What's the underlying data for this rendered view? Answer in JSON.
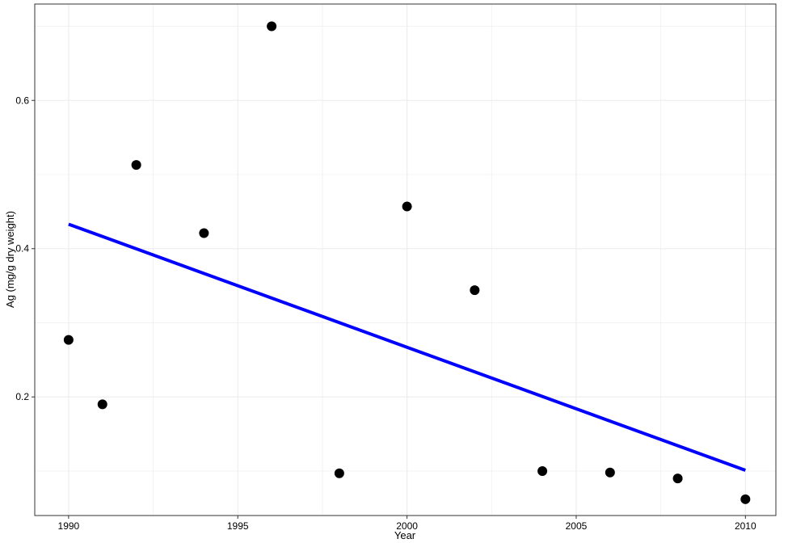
{
  "chart_data": {
    "type": "scatter",
    "xlabel": "Year",
    "ylabel": "Ag (mg/g dry weight)",
    "xlim": [
      1989.0,
      2010.9
    ],
    "ylim": [
      0.04,
      0.73
    ],
    "x_ticks": [
      1990,
      1995,
      2000,
      2005,
      2010
    ],
    "y_ticks": [
      0.2,
      0.4,
      0.6
    ],
    "x_tick_labels": [
      "1990",
      "1995",
      "2000",
      "2005",
      "2010"
    ],
    "y_tick_labels": [
      "0.2",
      "0.4",
      "0.6"
    ],
    "grid": true,
    "series": [
      {
        "type": "scatter",
        "x": [
          1990,
          1991,
          1992,
          1994,
          1996,
          1998,
          2000,
          2002,
          2004,
          2006,
          2008,
          2010
        ],
        "y": [
          0.277,
          0.19,
          0.513,
          0.421,
          0.7,
          0.097,
          0.457,
          0.344,
          0.1,
          0.098,
          0.09,
          0.062
        ]
      },
      {
        "type": "line",
        "x": [
          1990,
          2010
        ],
        "y": [
          0.433,
          0.101
        ]
      }
    ],
    "colors": {
      "points": "#000000",
      "trend": "#0000ff",
      "grid": "#ebebeb",
      "border": "#333333"
    }
  }
}
